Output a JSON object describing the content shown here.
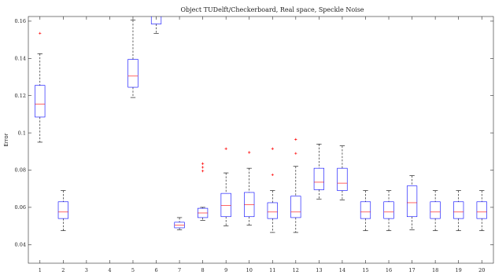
{
  "chart_data": {
    "type": "boxplot",
    "title": "Object TUDelft/Checkerboard, Real space, Speckle Noise",
    "xlabel": "",
    "ylabel": "Error",
    "ylim": [
      0.03,
      0.1625
    ],
    "xlim": [
      0.5,
      20.5
    ],
    "grid": false,
    "legend": "none",
    "colors": {
      "box": "#0000ff",
      "median": "#ff0000",
      "whisker": "#000000",
      "outlier": "#ff0000",
      "axis": "#262626"
    },
    "categories": [
      "1",
      "2",
      "3",
      "4",
      "5",
      "6",
      "7",
      "8",
      "9",
      "10",
      "11",
      "12",
      "13",
      "14",
      "15",
      "16",
      "17",
      "18",
      "19",
      "20"
    ],
    "y_ticks": [
      0.04,
      0.06,
      0.08,
      0.1,
      0.12,
      0.14,
      0.16
    ],
    "y_tick_labels": [
      "0.04",
      "0.06",
      "0.08",
      "0.1",
      "0.12",
      "0.14",
      "0.16"
    ],
    "boxes": [
      {
        "x": 1,
        "low": 0.095,
        "q1": 0.1085,
        "median": 0.1155,
        "q3": 0.1255,
        "high": 0.1425,
        "outliers": [
          0.1535
        ]
      },
      {
        "x": 2,
        "low": 0.0475,
        "q1": 0.054,
        "median": 0.0575,
        "q3": 0.063,
        "high": 0.069,
        "outliers": []
      },
      {
        "x": 5,
        "low": 0.119,
        "q1": 0.1245,
        "median": 0.1305,
        "q3": 0.1395,
        "high": 0.1605,
        "outliers": []
      },
      {
        "x": 6,
        "low": 0.1535,
        "q1": 0.1585,
        "median": null,
        "q3": null,
        "high": null,
        "outliers": []
      },
      {
        "x": 7,
        "low": 0.048,
        "q1": 0.049,
        "median": 0.0505,
        "q3": 0.052,
        "high": 0.0545,
        "outliers": []
      },
      {
        "x": 8,
        "low": 0.053,
        "q1": 0.0545,
        "median": 0.057,
        "q3": 0.0595,
        "high": 0.06,
        "outliers": [
          0.0795,
          0.0815,
          0.0835
        ]
      },
      {
        "x": 9,
        "low": 0.05,
        "q1": 0.055,
        "median": 0.061,
        "q3": 0.0675,
        "high": 0.0785,
        "outliers": [
          0.0915
        ]
      },
      {
        "x": 10,
        "low": 0.0505,
        "q1": 0.055,
        "median": 0.0615,
        "q3": 0.068,
        "high": 0.081,
        "outliers": [
          0.0895
        ]
      },
      {
        "x": 11,
        "low": 0.0465,
        "q1": 0.054,
        "median": 0.0575,
        "q3": 0.0625,
        "high": 0.069,
        "outliers": [
          0.0775,
          0.0915
        ]
      },
      {
        "x": 12,
        "low": 0.0465,
        "q1": 0.0545,
        "median": 0.0575,
        "q3": 0.066,
        "high": 0.082,
        "outliers": [
          0.089,
          0.0965
        ]
      },
      {
        "x": 13,
        "low": 0.0645,
        "q1": 0.0695,
        "median": 0.0735,
        "q3": 0.081,
        "high": 0.094,
        "outliers": []
      },
      {
        "x": 14,
        "low": 0.064,
        "q1": 0.069,
        "median": 0.073,
        "q3": 0.081,
        "high": 0.093,
        "outliers": []
      },
      {
        "x": 15,
        "low": 0.0475,
        "q1": 0.054,
        "median": 0.0575,
        "q3": 0.063,
        "high": 0.069,
        "outliers": []
      },
      {
        "x": 16,
        "low": 0.0475,
        "q1": 0.054,
        "median": 0.0575,
        "q3": 0.063,
        "high": 0.069,
        "outliers": []
      },
      {
        "x": 17,
        "low": 0.048,
        "q1": 0.055,
        "median": 0.0625,
        "q3": 0.0715,
        "high": 0.077,
        "outliers": []
      },
      {
        "x": 18,
        "low": 0.0475,
        "q1": 0.054,
        "median": 0.0575,
        "q3": 0.063,
        "high": 0.069,
        "outliers": []
      },
      {
        "x": 19,
        "low": 0.0475,
        "q1": 0.054,
        "median": 0.0575,
        "q3": 0.063,
        "high": 0.069,
        "outliers": []
      },
      {
        "x": 20,
        "low": 0.0475,
        "q1": 0.054,
        "median": 0.0575,
        "q3": 0.063,
        "high": 0.069,
        "outliers": []
      }
    ]
  }
}
